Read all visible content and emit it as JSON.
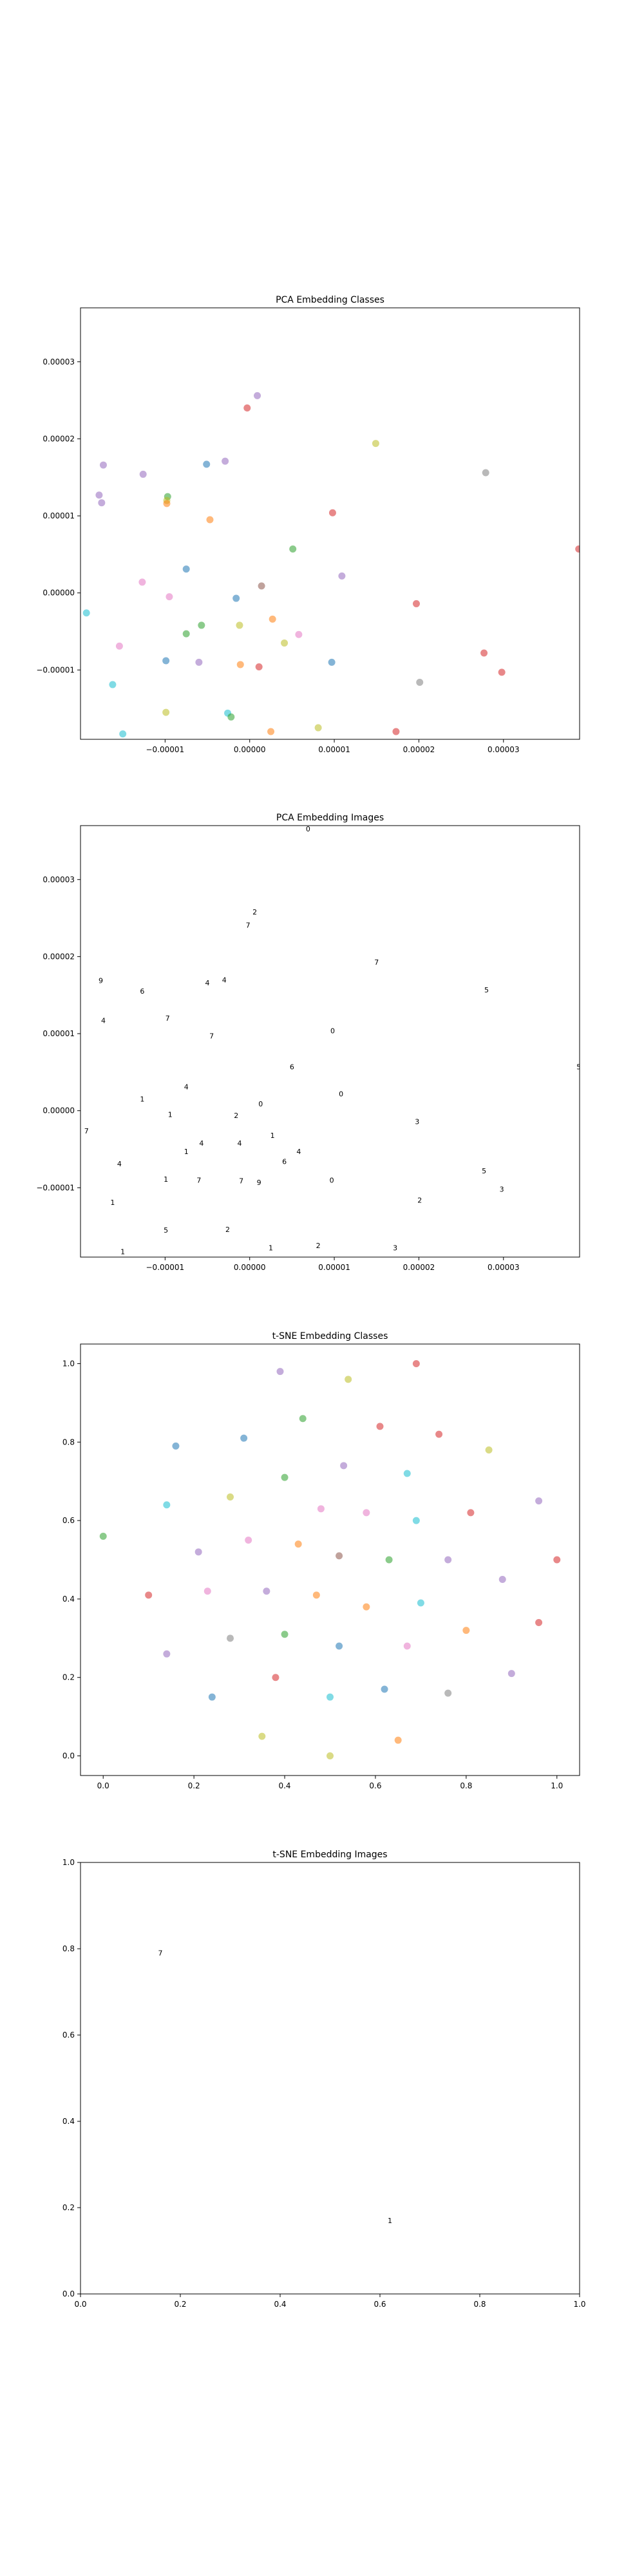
{
  "colors": {
    "blue": "#1f77b4",
    "orange": "#ff7f0e",
    "green": "#2ca02c",
    "red": "#d62728",
    "purple": "#9467bd",
    "brown": "#8c564b",
    "pink": "#e377c2",
    "gray": "#7f7f7f",
    "olive": "#bcbd22",
    "cyan": "#17becf"
  },
  "chart_data": [
    {
      "type": "scatter",
      "title": "PCA Embedding Classes",
      "xlim": [
        -2e-05,
        3.9e-05
      ],
      "ylim": [
        -1.9e-05,
        3.7e-05
      ],
      "xticks": [
        -1e-05,
        0.0,
        1e-05,
        2e-05,
        3e-05
      ],
      "xtick_labels": [
        "−0.00001",
        "0.00000",
        "0.00001",
        "0.00002",
        "0.00003"
      ],
      "yticks": [
        -1e-05,
        0.0,
        1e-05,
        2e-05,
        3e-05
      ],
      "ytick_labels": [
        "−0.00001",
        "0.00000",
        "0.00001",
        "0.00002",
        "0.00003"
      ],
      "grid": false,
      "points": [
        {
          "x": -1.73e-05,
          "y": 1.66e-05,
          "c": "purple"
        },
        {
          "x": -1.78e-05,
          "y": 1.27e-05,
          "c": "purple"
        },
        {
          "x": -1.75e-05,
          "y": 1.17e-05,
          "c": "purple"
        },
        {
          "x": -1.26e-05,
          "y": 1.54e-05,
          "c": "purple"
        },
        {
          "x": -9.7e-06,
          "y": 1.25e-05,
          "c": "green"
        },
        {
          "x": -9.8e-06,
          "y": 1.2e-05,
          "c": "olive"
        },
        {
          "x": -9.8e-06,
          "y": 1.16e-05,
          "c": "orange"
        },
        {
          "x": -5.1e-06,
          "y": 1.67e-05,
          "c": "blue"
        },
        {
          "x": -2.9e-06,
          "y": 1.71e-05,
          "c": "purple"
        },
        {
          "x": -4.7e-06,
          "y": 9.5e-06,
          "c": "orange"
        },
        {
          "x": -3e-07,
          "y": 2.4e-05,
          "c": "red"
        },
        {
          "x": 9e-07,
          "y": 2.56e-05,
          "c": "purple"
        },
        {
          "x": 1.49e-05,
          "y": 1.94e-05,
          "c": "olive"
        },
        {
          "x": 2.79e-05,
          "y": 1.56e-05,
          "c": "gray"
        },
        {
          "x": 5.1e-06,
          "y": 5.7e-06,
          "c": "green"
        },
        {
          "x": 9.8e-06,
          "y": 1.04e-05,
          "c": "red"
        },
        {
          "x": 1.09e-05,
          "y": 2.2e-06,
          "c": "purple"
        },
        {
          "x": 3.89e-05,
          "y": 5.7e-06,
          "c": "red"
        },
        {
          "x": -7.5e-06,
          "y": 3.1e-06,
          "c": "blue"
        },
        {
          "x": -1.27e-05,
          "y": 1.4e-06,
          "c": "pink"
        },
        {
          "x": -9.5e-06,
          "y": -5e-07,
          "c": "pink"
        },
        {
          "x": -1.6e-06,
          "y": -7e-07,
          "c": "blue"
        },
        {
          "x": 1.4e-06,
          "y": 9e-07,
          "c": "brown"
        },
        {
          "x": 1.97e-05,
          "y": -1.4e-06,
          "c": "red"
        },
        {
          "x": -1.93e-05,
          "y": -2.6e-06,
          "c": "cyan"
        },
        {
          "x": -1.54e-05,
          "y": -6.9e-06,
          "c": "pink"
        },
        {
          "x": -5.7e-06,
          "y": -4.2e-06,
          "c": "green"
        },
        {
          "x": -7.5e-06,
          "y": -5.3e-06,
          "c": "green"
        },
        {
          "x": -1.2e-06,
          "y": -4.2e-06,
          "c": "olive"
        },
        {
          "x": 2.7e-06,
          "y": -3.4e-06,
          "c": "orange"
        },
        {
          "x": 5.8e-06,
          "y": -5.4e-06,
          "c": "pink"
        },
        {
          "x": 4.1e-06,
          "y": -6.5e-06,
          "c": "olive"
        },
        {
          "x": -9.9e-06,
          "y": -8.8e-06,
          "c": "blue"
        },
        {
          "x": -6e-06,
          "y": -9e-06,
          "c": "purple"
        },
        {
          "x": -1.1e-06,
          "y": -9.3e-06,
          "c": "orange"
        },
        {
          "x": 1.1e-06,
          "y": -9.6e-06,
          "c": "red"
        },
        {
          "x": 9.7e-06,
          "y": -9e-06,
          "c": "blue"
        },
        {
          "x": 2.77e-05,
          "y": -7.8e-06,
          "c": "red"
        },
        {
          "x": 2.98e-05,
          "y": -1.03e-05,
          "c": "red"
        },
        {
          "x": 2.01e-05,
          "y": -1.16e-05,
          "c": "gray"
        },
        {
          "x": -1.62e-05,
          "y": -1.19e-05,
          "c": "cyan"
        },
        {
          "x": -9.9e-06,
          "y": -1.55e-05,
          "c": "olive"
        },
        {
          "x": -2.6e-06,
          "y": -1.56e-05,
          "c": "cyan"
        },
        {
          "x": -2.2e-06,
          "y": -1.61e-05,
          "c": "green"
        },
        {
          "x": -1.5e-05,
          "y": -1.83e-05,
          "c": "cyan"
        },
        {
          "x": 2.5e-06,
          "y": -1.8e-05,
          "c": "orange"
        },
        {
          "x": 8.1e-06,
          "y": -1.75e-05,
          "c": "olive"
        },
        {
          "x": 1.73e-05,
          "y": -1.8e-05,
          "c": "red"
        },
        {
          "x": -9.8e-06,
          "y": -1.95e-05,
          "c": "cyan"
        }
      ]
    },
    {
      "type": "scatter",
      "title": "PCA Embedding Images",
      "xlim": [
        -2e-05,
        3.9e-05
      ],
      "ylim": [
        -1.9e-05,
        3.7e-05
      ],
      "xticks": [
        -1e-05,
        0.0,
        1e-05,
        2e-05,
        3e-05
      ],
      "xtick_labels": [
        "−0.00001",
        "0.00000",
        "0.00001",
        "0.00002",
        "0.00003"
      ],
      "yticks": [
        -1e-05,
        0.0,
        1e-05,
        2e-05,
        3e-05
      ],
      "ytick_labels": [
        "−0.00001",
        "0.00000",
        "0.00001",
        "0.00002",
        "0.00003"
      ],
      "grid": false,
      "marker": "digit image thumbnails",
      "points": [
        {
          "x": 6.9e-06,
          "y": 3.66e-05,
          "g": "0"
        },
        {
          "x": 6e-07,
          "y": 2.58e-05,
          "g": "2"
        },
        {
          "x": -2e-07,
          "y": 2.41e-05,
          "g": "7"
        },
        {
          "x": 1.5e-05,
          "y": 1.93e-05,
          "g": "7"
        },
        {
          "x": -1.76e-05,
          "y": 1.69e-05,
          "g": "9"
        },
        {
          "x": -1.27e-05,
          "y": 1.55e-05,
          "g": "6"
        },
        {
          "x": -5e-06,
          "y": 1.66e-05,
          "g": "4"
        },
        {
          "x": -3e-06,
          "y": 1.7e-05,
          "g": "4"
        },
        {
          "x": 2.8e-05,
          "y": 1.57e-05,
          "g": "5"
        },
        {
          "x": -1.73e-05,
          "y": 1.17e-05,
          "g": "4"
        },
        {
          "x": -9.7e-06,
          "y": 1.2e-05,
          "g": "7"
        },
        {
          "x": -4.5e-06,
          "y": 9.7e-06,
          "g": "7"
        },
        {
          "x": 9.8e-06,
          "y": 1.04e-05,
          "g": "0"
        },
        {
          "x": 5e-06,
          "y": 5.7e-06,
          "g": "6"
        },
        {
          "x": 3.89e-05,
          "y": 5.7e-06,
          "g": "5"
        },
        {
          "x": -7.5e-06,
          "y": 3.1e-06,
          "g": "4"
        },
        {
          "x": 1.08e-05,
          "y": 2.2e-06,
          "g": "0"
        },
        {
          "x": -1.27e-05,
          "y": 1.5e-06,
          "g": "1"
        },
        {
          "x": 1.3e-06,
          "y": 9e-07,
          "g": "0"
        },
        {
          "x": -9.4e-06,
          "y": -5e-07,
          "g": "1"
        },
        {
          "x": -1.6e-06,
          "y": -6e-07,
          "g": "2"
        },
        {
          "x": 1.98e-05,
          "y": -1.4e-06,
          "g": "3"
        },
        {
          "x": -1.93e-05,
          "y": -2.6e-06,
          "g": "7"
        },
        {
          "x": 2.7e-06,
          "y": -3.2e-06,
          "g": "1"
        },
        {
          "x": -5.7e-06,
          "y": -4.2e-06,
          "g": "4"
        },
        {
          "x": -1.2e-06,
          "y": -4.2e-06,
          "g": "4"
        },
        {
          "x": -7.5e-06,
          "y": -5.3e-06,
          "g": "1"
        },
        {
          "x": 5.8e-06,
          "y": -5.3e-06,
          "g": "4"
        },
        {
          "x": 4.1e-06,
          "y": -6.6e-06,
          "g": "6"
        },
        {
          "x": -1.54e-05,
          "y": -6.9e-06,
          "g": "4"
        },
        {
          "x": -9.9e-06,
          "y": -8.9e-06,
          "g": "1"
        },
        {
          "x": -6e-06,
          "y": -9e-06,
          "g": "7"
        },
        {
          "x": -1e-06,
          "y": -9.1e-06,
          "g": "7"
        },
        {
          "x": 1.1e-06,
          "y": -9.3e-06,
          "g": "9"
        },
        {
          "x": 9.7e-06,
          "y": -9e-06,
          "g": "0"
        },
        {
          "x": 2.77e-05,
          "y": -7.8e-06,
          "g": "5"
        },
        {
          "x": 2.98e-05,
          "y": -1.02e-05,
          "g": "3"
        },
        {
          "x": -1.62e-05,
          "y": -1.19e-05,
          "g": "1"
        },
        {
          "x": 2.01e-05,
          "y": -1.16e-05,
          "g": "2"
        },
        {
          "x": -9.9e-06,
          "y": -1.55e-05,
          "g": "5"
        },
        {
          "x": -2.6e-06,
          "y": -1.54e-05,
          "g": "2"
        },
        {
          "x": -1.5e-05,
          "y": -1.83e-05,
          "g": "1"
        },
        {
          "x": 2.5e-06,
          "y": -1.78e-05,
          "g": "1"
        },
        {
          "x": 8.1e-06,
          "y": -1.75e-05,
          "g": "2"
        },
        {
          "x": 1.72e-05,
          "y": -1.78e-05,
          "g": "3"
        },
        {
          "x": -9.8e-06,
          "y": -1.93e-05,
          "g": "1"
        }
      ]
    },
    {
      "type": "scatter",
      "title": "t-SNE Embedding Classes",
      "xlim": [
        -0.05,
        1.05
      ],
      "ylim": [
        -0.05,
        1.05
      ],
      "xticks": [
        0.0,
        0.2,
        0.4,
        0.6,
        0.8,
        1.0
      ],
      "xtick_labels": [
        "0.0",
        "0.2",
        "0.4",
        "0.6",
        "0.8",
        "1.0"
      ],
      "yticks": [
        0.0,
        0.2,
        0.4,
        0.6,
        0.8,
        1.0
      ],
      "ytick_labels": [
        "0.0",
        "0.2",
        "0.4",
        "0.6",
        "0.8",
        "1.0"
      ],
      "grid": false,
      "points": [
        {
          "x": 0.39,
          "y": 0.98,
          "c": "purple"
        },
        {
          "x": 0.69,
          "y": 1.0,
          "c": "red"
        },
        {
          "x": 0.54,
          "y": 0.96,
          "c": "olive"
        },
        {
          "x": 0.44,
          "y": 0.86,
          "c": "green"
        },
        {
          "x": 0.61,
          "y": 0.84,
          "c": "red"
        },
        {
          "x": 0.74,
          "y": 0.82,
          "c": "red"
        },
        {
          "x": 0.31,
          "y": 0.81,
          "c": "blue"
        },
        {
          "x": 0.16,
          "y": 0.79,
          "c": "blue"
        },
        {
          "x": 0.85,
          "y": 0.78,
          "c": "olive"
        },
        {
          "x": 0.53,
          "y": 0.74,
          "c": "purple"
        },
        {
          "x": 0.67,
          "y": 0.72,
          "c": "cyan"
        },
        {
          "x": 0.4,
          "y": 0.71,
          "c": "green"
        },
        {
          "x": 0.28,
          "y": 0.66,
          "c": "olive"
        },
        {
          "x": 0.14,
          "y": 0.64,
          "c": "cyan"
        },
        {
          "x": 0.96,
          "y": 0.65,
          "c": "purple"
        },
        {
          "x": 0.48,
          "y": 0.63,
          "c": "pink"
        },
        {
          "x": 0.58,
          "y": 0.62,
          "c": "pink"
        },
        {
          "x": 0.81,
          "y": 0.62,
          "c": "red"
        },
        {
          "x": 0.69,
          "y": 0.6,
          "c": "cyan"
        },
        {
          "x": 0.0,
          "y": 0.56,
          "c": "green"
        },
        {
          "x": 0.32,
          "y": 0.55,
          "c": "pink"
        },
        {
          "x": 0.43,
          "y": 0.54,
          "c": "orange"
        },
        {
          "x": 0.21,
          "y": 0.52,
          "c": "purple"
        },
        {
          "x": 0.52,
          "y": 0.51,
          "c": "brown"
        },
        {
          "x": 0.63,
          "y": 0.5,
          "c": "green"
        },
        {
          "x": 0.76,
          "y": 0.5,
          "c": "purple"
        },
        {
          "x": 1.0,
          "y": 0.5,
          "c": "red"
        },
        {
          "x": 0.88,
          "y": 0.45,
          "c": "purple"
        },
        {
          "x": 0.23,
          "y": 0.42,
          "c": "pink"
        },
        {
          "x": 0.36,
          "y": 0.42,
          "c": "purple"
        },
        {
          "x": 0.1,
          "y": 0.41,
          "c": "red"
        },
        {
          "x": 0.47,
          "y": 0.41,
          "c": "orange"
        },
        {
          "x": 0.7,
          "y": 0.39,
          "c": "cyan"
        },
        {
          "x": 0.58,
          "y": 0.38,
          "c": "orange"
        },
        {
          "x": 0.96,
          "y": 0.34,
          "c": "red"
        },
        {
          "x": 0.8,
          "y": 0.32,
          "c": "orange"
        },
        {
          "x": 0.4,
          "y": 0.31,
          "c": "green"
        },
        {
          "x": 0.28,
          "y": 0.3,
          "c": "gray"
        },
        {
          "x": 0.52,
          "y": 0.28,
          "c": "blue"
        },
        {
          "x": 0.67,
          "y": 0.28,
          "c": "pink"
        },
        {
          "x": 0.14,
          "y": 0.26,
          "c": "purple"
        },
        {
          "x": 0.9,
          "y": 0.21,
          "c": "purple"
        },
        {
          "x": 0.38,
          "y": 0.2,
          "c": "red"
        },
        {
          "x": 0.62,
          "y": 0.17,
          "c": "blue"
        },
        {
          "x": 0.76,
          "y": 0.16,
          "c": "gray"
        },
        {
          "x": 0.24,
          "y": 0.15,
          "c": "blue"
        },
        {
          "x": 0.5,
          "y": 0.15,
          "c": "cyan"
        },
        {
          "x": 0.35,
          "y": 0.05,
          "c": "olive"
        },
        {
          "x": 0.65,
          "y": 0.04,
          "c": "orange"
        },
        {
          "x": 0.5,
          "y": 0.0,
          "c": "olive"
        }
      ]
    },
    {
      "type": "scatter",
      "title": "t-SNE Embedding Images",
      "xlim": [
        0.0,
        1.0
      ],
      "ylim": [
        0.0,
        1.0
      ],
      "xticks": [
        0.0,
        0.2,
        0.4,
        0.6,
        0.8,
        1.0
      ],
      "xtick_labels": [
        "0.0",
        "0.2",
        "0.4",
        "0.6",
        "0.8",
        "1.0"
      ],
      "yticks": [
        0.0,
        0.2,
        0.4,
        0.6,
        0.8,
        1.0
      ],
      "ytick_labels": [
        "0.0",
        "0.2",
        "0.4",
        "0.6",
        "0.8",
        "1.0"
      ],
      "grid": false,
      "marker": "digit image thumbnails",
      "points": [
        {
          "x": 0.16,
          "y": 0.79,
          "g": "7"
        },
        {
          "x": 0.62,
          "y": 0.17,
          "g": "1"
        }
      ]
    }
  ]
}
